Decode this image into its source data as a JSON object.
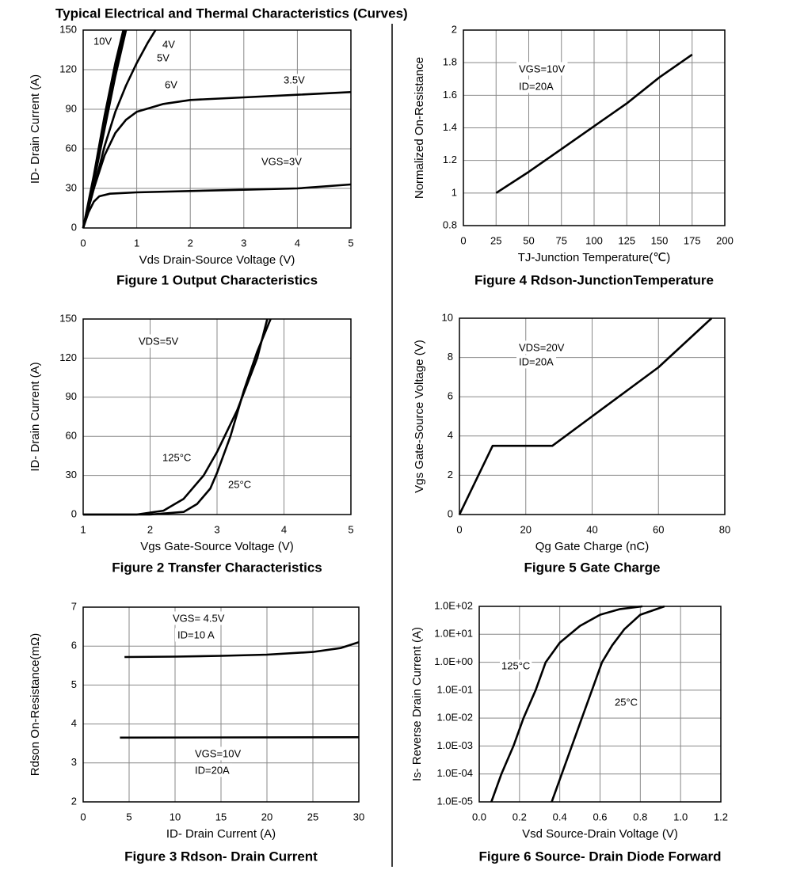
{
  "title": "Typical Electrical and Thermal Characteristics (Curves)",
  "chart_data": [
    {
      "type": "line",
      "caption": "Figure 1 Output Characteristics",
      "xlabel": "Vds Drain-Source Voltage (V)",
      "ylabel": "ID- Drain Current (A)",
      "xlim": [
        0,
        5
      ],
      "xticks": [
        0,
        1,
        2,
        3,
        4,
        5
      ],
      "ylim": [
        0,
        150
      ],
      "yticks": [
        0,
        30,
        60,
        90,
        120,
        150
      ],
      "grid": true,
      "series": [
        {
          "name": "VGS=3V",
          "color": "#000000",
          "x": [
            0,
            0.1,
            0.2,
            0.3,
            0.5,
            1,
            2,
            3,
            4,
            5
          ],
          "values": [
            0,
            12,
            20,
            24,
            26,
            27,
            28,
            29,
            30,
            33
          ]
        },
        {
          "name": "3.5V",
          "color": "#000000",
          "x": [
            0,
            0.2,
            0.4,
            0.6,
            0.8,
            1,
            1.5,
            2,
            3,
            4,
            5
          ],
          "values": [
            0,
            30,
            55,
            72,
            82,
            88,
            94,
            97,
            99,
            101,
            103
          ]
        },
        {
          "name": "4V",
          "color": "#000000",
          "x": [
            0,
            0.2,
            0.4,
            0.6,
            0.8,
            1,
            1.2,
            1.35
          ],
          "values": [
            0,
            30,
            62,
            88,
            108,
            125,
            140,
            150
          ]
        },
        {
          "name": "5V",
          "color": "#000000",
          "x": [
            0,
            0.2,
            0.4,
            0.6,
            0.8
          ],
          "values": [
            0,
            35,
            75,
            115,
            150
          ]
        },
        {
          "name": "6V",
          "color": "#000000",
          "x": [
            0,
            0.2,
            0.4,
            0.6,
            0.78
          ],
          "values": [
            0,
            38,
            80,
            120,
            150
          ]
        },
        {
          "name": "10V",
          "color": "#000000",
          "x": [
            0,
            0.2,
            0.4,
            0.6,
            0.75
          ],
          "values": [
            0,
            40,
            85,
            125,
            150
          ]
        }
      ]
    },
    {
      "type": "line",
      "caption": "Figure 2 Transfer Characteristics",
      "xlabel": "Vgs Gate-Source Voltage (V)",
      "ylabel": "ID- Drain Current (A)",
      "xlim": [
        1,
        5
      ],
      "xticks": [
        1,
        2,
        3,
        4,
        5
      ],
      "ylim": [
        0,
        150
      ],
      "yticks": [
        0,
        30,
        60,
        90,
        120,
        150
      ],
      "grid": true,
      "annotations": [
        "VDS=5V"
      ],
      "series": [
        {
          "name": "25°C",
          "color": "#000000",
          "x": [
            1,
            2,
            2.5,
            2.7,
            2.9,
            3,
            3.2,
            3.4,
            3.6,
            3.8
          ],
          "values": [
            0,
            0,
            2,
            8,
            20,
            32,
            60,
            95,
            125,
            150
          ]
        },
        {
          "name": "125°C",
          "color": "#000000",
          "x": [
            1,
            1.8,
            2.2,
            2.5,
            2.8,
            3,
            3.3,
            3.6,
            3.75
          ],
          "values": [
            0,
            0,
            3,
            12,
            30,
            48,
            80,
            120,
            150
          ]
        }
      ]
    },
    {
      "type": "line",
      "caption": "Figure 3 Rdson- Drain Current",
      "xlabel": "ID- Drain Current (A)",
      "ylabel": "Rdson On-Resistance(mΩ)",
      "xlim": [
        0,
        30
      ],
      "xticks": [
        0,
        5,
        10,
        15,
        20,
        25,
        30
      ],
      "ylim": [
        2,
        7
      ],
      "yticks": [
        2,
        3,
        4,
        5,
        6,
        7
      ],
      "grid": true,
      "annotations": [
        "VGS= 4.5V",
        "ID=10 A",
        "VGS=10V",
        "ID=20A"
      ],
      "series": [
        {
          "color": "#000000",
          "x": [
            4.5,
            10,
            15,
            20,
            25,
            28,
            30
          ],
          "values": [
            5.72,
            5.73,
            5.75,
            5.78,
            5.85,
            5.95,
            6.1
          ]
        },
        {
          "color": "#000000",
          "x": [
            4,
            30
          ],
          "values": [
            3.65,
            3.66
          ]
        }
      ]
    },
    {
      "type": "line",
      "caption": "Figure 4 Rdson-JunctionTemperature",
      "xlabel": "TJ-Junction Temperature(℃)",
      "ylabel": "Normalized On-Resistance",
      "xlim": [
        0,
        200
      ],
      "xticks": [
        0,
        25,
        50,
        75,
        100,
        125,
        150,
        175,
        200
      ],
      "ylim": [
        0.8,
        2
      ],
      "yticks": [
        0.8,
        1,
        1.2,
        1.4,
        1.6,
        1.8,
        2
      ],
      "grid": true,
      "annotations": [
        "VGS=10V",
        "ID=20A"
      ],
      "series": [
        {
          "color": "#000000",
          "x": [
            25,
            50,
            75,
            100,
            125,
            150,
            175
          ],
          "values": [
            1,
            1.13,
            1.27,
            1.41,
            1.55,
            1.71,
            1.85
          ]
        }
      ]
    },
    {
      "type": "line",
      "caption": "Figure 5 Gate Charge",
      "xlabel": "Qg Gate Charge (nC)",
      "ylabel": "Vgs Gate-Source Voltage (V)",
      "xlim": [
        0,
        80
      ],
      "xticks": [
        0,
        20,
        40,
        60,
        80
      ],
      "ylim": [
        0,
        10
      ],
      "yticks": [
        0,
        2,
        4,
        6,
        8,
        10
      ],
      "grid": true,
      "annotations": [
        "VDS=20V",
        "ID=20A"
      ],
      "series": [
        {
          "color": "#000000",
          "x": [
            0,
            10,
            28,
            40,
            60,
            76
          ],
          "values": [
            0,
            3.5,
            3.5,
            5,
            7.5,
            10
          ]
        }
      ]
    },
    {
      "type": "line",
      "caption": "Figure 6 Source- Drain Diode Forward",
      "xlabel": "Vsd Source-Drain Voltage (V)",
      "ylabel": "Is- Reverse Drain Current (A)",
      "xlim": [
        0,
        1.2
      ],
      "xticks": [
        {
          "value": 0,
          "label": "0.0"
        },
        0.2,
        0.4,
        0.6,
        0.8,
        {
          "value": 1,
          "label": "1.0"
        },
        1.2
      ],
      "ylim": [
        1e-05,
        100
      ],
      "log_y": true,
      "grid": true,
      "yticks": [
        {
          "value": 1e-05,
          "label": "1.0E-05"
        },
        {
          "value": 0.0001,
          "label": "1.0E-04"
        },
        {
          "value": 0.001,
          "label": "1.0E-03"
        },
        {
          "value": 0.01,
          "label": "1.0E-02"
        },
        {
          "value": 0.1,
          "label": "1.0E-01"
        },
        {
          "value": 1,
          "label": "1.0E+00"
        },
        {
          "value": 10,
          "label": "1.0E+01"
        },
        {
          "value": 100,
          "label": "1.0E+02"
        }
      ],
      "series": [
        {
          "name": "125°C",
          "color": "#000000",
          "x": [
            0.06,
            0.11,
            0.17,
            0.22,
            0.28,
            0.33,
            0.4,
            0.5,
            0.6,
            0.7,
            0.81
          ],
          "values": [
            1e-05,
            0.0001,
            0.001,
            0.01,
            0.1,
            1,
            5,
            20,
            50,
            80,
            100
          ]
        },
        {
          "name": "25°C",
          "color": "#000000",
          "x": [
            0.36,
            0.41,
            0.46,
            0.51,
            0.56,
            0.61,
            0.66,
            0.72,
            0.8,
            0.92
          ],
          "values": [
            1e-05,
            0.0001,
            0.001,
            0.01,
            0.1,
            1,
            4,
            15,
            50,
            100
          ]
        }
      ]
    }
  ]
}
